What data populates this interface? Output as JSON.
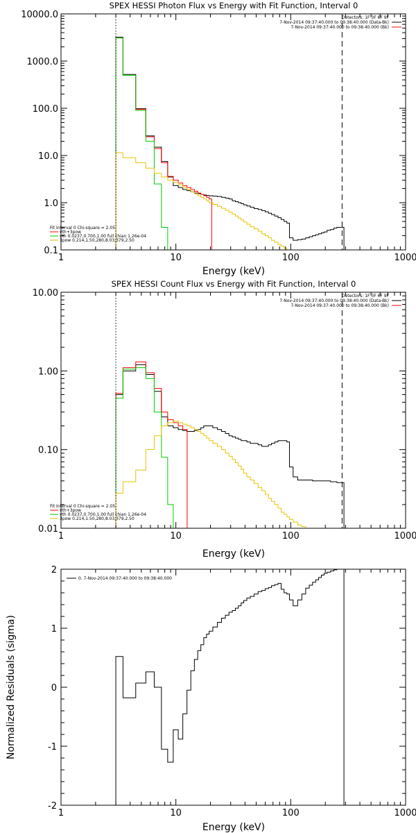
{
  "chart_data": [
    {
      "type": "line",
      "title": "SPEX HESSI Photon Flux vs Energy with Fit Function, Interval 0",
      "xlabel": "Energy (keV)",
      "ylabel": "",
      "xlog": true,
      "ylog": true,
      "xlim": [
        1,
        1000
      ],
      "ylim": [
        0.1,
        10000
      ],
      "xticks": [
        "1",
        "10",
        "100",
        "1000"
      ],
      "yticks": [
        "0.1",
        "1.0",
        "10.0",
        "100.0",
        "1000.0",
        "10000.0"
      ],
      "vlines": [
        {
          "x": 3,
          "style": "dotted"
        },
        {
          "x": 280,
          "style": "dashed"
        }
      ],
      "legend_top": {
        "position": "top-right",
        "lines": [
          "Detectors: 1F 3F 6F 9F",
          "7-Nov-2014 09:37:40.000 to 09:38:40.000 (Data-Bk)",
          "7-Nov-2014 09:37:40.000 to 09:38:40.000 (Bk)"
        ],
        "colors": [
          "#000000",
          "#000000",
          "#ff0000"
        ]
      },
      "legend_bottom": {
        "position": "bottom-left",
        "header": "Fit Interval 0   Chi-square = 2.05",
        "lines": [
          "vth+3pow",
          "vth 0.0237,0.700,1.00  full chian 1.26e-04",
          "3pow 0.214,1.50,280,8.03,379,2.50"
        ],
        "colors": [
          "#ff0000",
          "#00cc00",
          "#e6c300"
        ]
      },
      "series": [
        {
          "name": "7-Nov-2014 09:37:40.000 to 09:38:40.000 (Data-Bk)",
          "color": "#000000",
          "x": [
            3,
            4,
            5,
            6,
            7,
            8,
            9,
            10,
            11,
            12,
            13,
            14,
            15,
            16,
            17,
            18,
            19,
            20,
            22,
            24,
            26,
            28,
            30,
            32,
            34,
            36,
            38,
            40,
            43,
            46,
            50,
            54,
            58,
            62,
            66,
            70,
            75,
            80,
            85,
            90,
            95,
            100,
            110,
            120,
            130,
            140,
            150,
            160,
            170,
            180,
            190,
            200,
            215,
            230,
            245,
            260,
            280
          ],
          "y": [
            3200,
            520,
            98,
            26,
            15,
            7.5,
            3.5,
            2.3,
            2.1,
            1.9,
            1.8,
            1.7,
            1.6,
            1.55,
            1.5,
            1.45,
            1.42,
            1.4,
            1.38,
            1.35,
            1.3,
            1.25,
            1.2,
            1.1,
            1.05,
            1.0,
            0.95,
            0.9,
            0.85,
            0.8,
            0.75,
            0.72,
            0.68,
            0.64,
            0.6,
            0.56,
            0.52,
            0.48,
            0.44,
            0.4,
            0.37,
            0.18,
            0.16,
            0.165,
            0.17,
            0.18,
            0.19,
            0.2,
            0.21,
            0.22,
            0.23,
            0.24,
            0.26,
            0.27,
            0.29,
            0.3,
            0.3
          ]
        },
        {
          "name": "vth+3pow",
          "color": "#ff0000",
          "x": [
            3,
            4,
            5,
            6,
            7,
            8,
            9,
            10,
            11,
            12,
            13,
            14,
            15,
            16,
            17,
            18,
            19,
            20
          ],
          "y": [
            3100,
            500,
            95,
            25,
            14,
            7.0,
            3.6,
            3.0,
            2.6,
            2.3,
            2.1,
            1.9,
            1.75,
            1.6,
            1.5,
            1.4,
            1.3,
            1.2
          ]
        },
        {
          "name": "vth 0.0237,0.700,1.00  full chian 1.26e-04",
          "color": "#00cc00",
          "x": [
            3,
            4,
            5,
            6,
            7,
            8,
            9
          ],
          "y": [
            3100,
            500,
            90,
            20,
            2.5,
            0.3,
            0.1
          ]
        },
        {
          "name": "3pow 0.214,1.50,280,8.03,379,2.50",
          "color": "#e6c300",
          "x": [
            3,
            4,
            5,
            6,
            7,
            8,
            9,
            10,
            11,
            12,
            13,
            14,
            15,
            16,
            17,
            18,
            19,
            20,
            22,
            24,
            26,
            28,
            30,
            32,
            34,
            36,
            38,
            40,
            43,
            46,
            50,
            54,
            58,
            62,
            66,
            70,
            75,
            80,
            85,
            90,
            95,
            100
          ],
          "y": [
            11.5,
            9.0,
            7.0,
            5.4,
            4.2,
            3.5,
            3.0,
            2.7,
            2.4,
            2.1,
            1.9,
            1.7,
            1.55,
            1.4,
            1.3,
            1.2,
            1.1,
            1.0,
            0.92,
            0.84,
            0.76,
            0.69,
            0.63,
            0.57,
            0.52,
            0.47,
            0.43,
            0.39,
            0.35,
            0.31,
            0.28,
            0.25,
            0.22,
            0.2,
            0.18,
            0.16,
            0.145,
            0.13,
            0.12,
            0.11,
            0.1,
            0.09
          ]
        }
      ]
    },
    {
      "type": "line",
      "title": "SPEX HESSI Count Flux vs Energy with Fit Function, Interval 0",
      "xlabel": "Energy (keV)",
      "ylabel": "",
      "xlog": true,
      "ylog": true,
      "xlim": [
        1,
        1000
      ],
      "ylim": [
        0.01,
        10
      ],
      "xticks": [
        "1",
        "10",
        "100",
        "1000"
      ],
      "yticks": [
        "0.01",
        "0.10",
        "1.00",
        "10.00"
      ],
      "vlines": [
        {
          "x": 3,
          "style": "dotted"
        },
        {
          "x": 280,
          "style": "dashed"
        }
      ],
      "legend_top": {
        "position": "top-right",
        "lines": [
          "Detectors: 1F 3F 6F 9F",
          "7-Nov-2014 09:37:40.000 to 09:38:40.000 (Data-Bk)",
          "7-Nov-2014 09:37:40.000 to 09:38:40.000 (Bk)"
        ],
        "colors": [
          "#000000",
          "#000000",
          "#ff0000"
        ]
      },
      "legend_bottom": {
        "position": "bottom-left",
        "header": "Fit Interval 0   Chi-square = 2.05",
        "lines": [
          "vth+3pow",
          "vth 0.0237,0.700,1.00  full chian 1.26e-04",
          "3pow 0.214,1.50,280,8.03,379,2.50"
        ],
        "colors": [
          "#ff0000",
          "#00cc00",
          "#e6c300"
        ]
      },
      "series": [
        {
          "name": "7-Nov-2014 09:37:40.000 to 09:38:40.000 (Data-Bk)",
          "color": "#000000",
          "x": [
            3,
            4,
            5,
            6,
            7,
            8,
            9,
            10,
            11,
            12,
            13,
            14,
            15,
            16,
            17,
            18,
            19,
            20,
            22,
            24,
            26,
            28,
            30,
            32,
            34,
            36,
            38,
            40,
            43,
            46,
            50,
            54,
            58,
            62,
            66,
            70,
            75,
            80,
            85,
            90,
            95,
            100,
            110,
            120,
            130,
            140,
            150,
            160,
            170,
            180,
            190,
            200,
            215,
            230,
            245,
            260,
            280
          ],
          "y": [
            0.5,
            1.0,
            1.2,
            0.9,
            0.55,
            0.26,
            0.2,
            0.19,
            0.18,
            0.175,
            0.17,
            0.17,
            0.175,
            0.18,
            0.19,
            0.2,
            0.2,
            0.2,
            0.19,
            0.18,
            0.17,
            0.16,
            0.15,
            0.145,
            0.14,
            0.135,
            0.13,
            0.13,
            0.125,
            0.12,
            0.12,
            0.115,
            0.11,
            0.11,
            0.115,
            0.12,
            0.125,
            0.13,
            0.13,
            0.13,
            0.125,
            0.06,
            0.045,
            0.041,
            0.041,
            0.041,
            0.041,
            0.04,
            0.04,
            0.04,
            0.04,
            0.04,
            0.04,
            0.039,
            0.039,
            0.038,
            0.038
          ]
        },
        {
          "name": "vth+3pow",
          "color": "#ff0000",
          "x": [
            3,
            4,
            5,
            6,
            7,
            8,
            9,
            10,
            11,
            12
          ],
          "y": [
            0.52,
            1.1,
            1.3,
            0.95,
            0.6,
            0.3,
            0.24,
            0.22,
            0.2,
            0.18
          ]
        },
        {
          "name": "vth 0.0237,0.700,1.00  full chian 1.26e-04",
          "color": "#00cc00",
          "x": [
            3,
            4,
            5,
            6,
            7,
            8,
            9,
            10
          ],
          "y": [
            0.45,
            1.05,
            1.1,
            0.8,
            0.3,
            0.08,
            0.02,
            0.01
          ]
        },
        {
          "name": "3pow 0.214,1.50,280,8.03,379,2.50",
          "color": "#e6c300",
          "x": [
            3,
            4,
            5,
            6,
            7,
            8,
            9,
            10,
            11,
            12,
            13,
            14,
            15,
            16,
            17,
            18,
            19,
            20,
            22,
            24,
            26,
            28,
            30,
            32,
            34,
            36,
            38,
            40,
            43,
            46,
            50,
            54,
            58,
            62,
            66,
            70,
            75,
            80,
            85,
            90,
            95,
            100,
            110,
            120,
            130,
            140
          ],
          "y": [
            0.028,
            0.039,
            0.055,
            0.1,
            0.15,
            0.2,
            0.22,
            0.23,
            0.22,
            0.21,
            0.2,
            0.19,
            0.18,
            0.17,
            0.16,
            0.15,
            0.14,
            0.13,
            0.12,
            0.11,
            0.1,
            0.09,
            0.082,
            0.075,
            0.068,
            0.062,
            0.056,
            0.05,
            0.045,
            0.041,
            0.037,
            0.033,
            0.03,
            0.027,
            0.024,
            0.022,
            0.02,
            0.018,
            0.016,
            0.015,
            0.014,
            0.013,
            0.012,
            0.011,
            0.0105,
            0.01
          ]
        }
      ]
    },
    {
      "type": "line",
      "title": "",
      "xlabel": "Energy (keV)",
      "ylabel": "Normalized Residuals (sigma)",
      "xlog": true,
      "ylog": false,
      "xlim": [
        1,
        1000
      ],
      "ylim": [
        -2,
        2
      ],
      "xticks": [
        "1",
        "10",
        "100",
        "1000"
      ],
      "yticks": [
        "-2",
        "-1",
        "0",
        "1",
        "2"
      ],
      "legend_top": {
        "position": "top-left",
        "lines": [
          "0.  7-Nov-2014 09:37:40.000 to 09:38:40.000"
        ],
        "colors": [
          "#000000"
        ]
      },
      "series": [
        {
          "name": "0.  7-Nov-2014 09:37:40.000 to 09:38:40.000",
          "color": "#000000",
          "x": [
            3,
            4,
            5,
            6,
            7,
            8,
            9,
            10,
            11,
            12,
            13,
            14,
            15,
            16,
            17,
            18,
            19,
            20,
            22,
            24,
            26,
            28,
            30,
            32,
            34,
            36,
            38,
            40,
            43,
            46,
            50,
            54,
            58,
            62,
            66,
            70,
            75,
            80,
            85,
            90,
            95,
            100,
            110,
            120,
            130,
            140,
            150,
            160,
            170,
            180,
            190,
            200,
            215,
            230,
            245,
            260,
            280
          ],
          "y": [
            0.52,
            -0.18,
            0.07,
            0.26,
            0.0,
            -1.05,
            -1.27,
            -0.72,
            -0.88,
            -0.45,
            -0.05,
            0.28,
            0.47,
            0.62,
            0.72,
            0.84,
            0.9,
            0.95,
            1.02,
            1.1,
            1.17,
            1.22,
            1.27,
            1.3,
            1.34,
            1.38,
            1.43,
            1.47,
            1.51,
            1.54,
            1.58,
            1.62,
            1.64,
            1.67,
            1.69,
            1.72,
            1.74,
            1.76,
            1.66,
            1.6,
            1.58,
            1.48,
            1.38,
            1.48,
            1.58,
            1.68,
            1.73,
            1.78,
            1.82,
            1.86,
            1.9,
            1.93,
            1.95,
            1.97,
            1.99,
            2.0,
            2.0
          ]
        }
      ]
    }
  ]
}
